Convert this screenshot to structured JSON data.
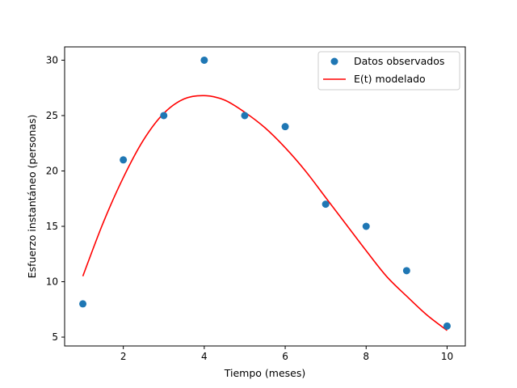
{
  "chart_data": {
    "type": "scatter",
    "xlabel": "Tiempo (meses)",
    "ylabel": "Esfuerzo instantáneo (personas)",
    "xlim": [
      0.55,
      10.45
    ],
    "ylim": [
      4.2,
      31.2
    ],
    "xticks": [
      2,
      4,
      6,
      8,
      10
    ],
    "yticks": [
      5,
      10,
      15,
      20,
      25,
      30
    ],
    "grid": false,
    "legend_position": "top-right",
    "colors": {
      "observed": "#1f77b4",
      "model": "#ff0000"
    },
    "series": [
      {
        "name": "Datos observados",
        "kind": "scatter",
        "x": [
          1,
          2,
          3,
          4,
          5,
          6,
          7,
          8,
          9,
          10
        ],
        "y": [
          8,
          21,
          25,
          30,
          25,
          24,
          17,
          15,
          11,
          6
        ]
      },
      {
        "name": "E(t) modelado",
        "kind": "line",
        "x": [
          1,
          1.5,
          2,
          2.5,
          3,
          3.5,
          4,
          4.5,
          5,
          5.5,
          6,
          6.5,
          7,
          7.5,
          8,
          8.5,
          9,
          9.5,
          10
        ],
        "y": [
          10.5,
          15.3,
          19.4,
          22.8,
          25.2,
          26.5,
          26.8,
          26.4,
          25.3,
          23.9,
          22.1,
          20.0,
          17.6,
          15.2,
          12.8,
          10.5,
          8.7,
          7.0,
          5.6
        ]
      }
    ]
  }
}
